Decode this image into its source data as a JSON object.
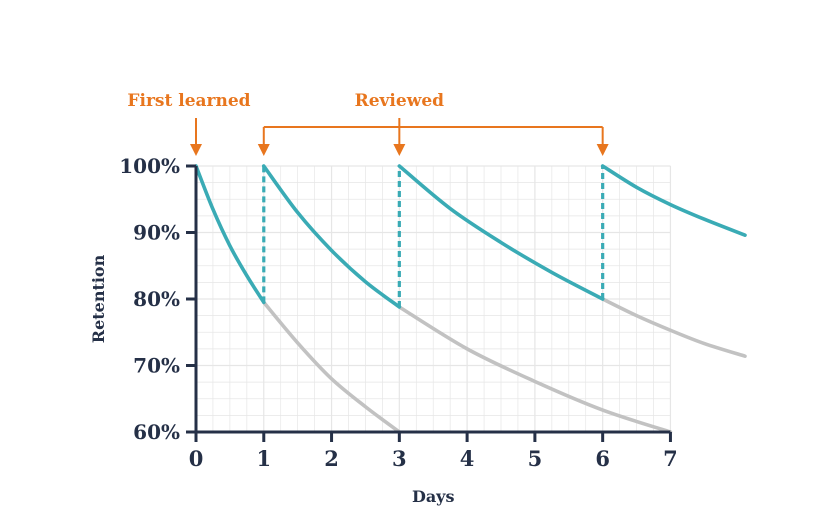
{
  "chart_data": {
    "type": "line",
    "title": "",
    "xlabel": "Days",
    "ylabel": "Retention",
    "xlim": [
      0,
      8.1
    ],
    "ylim": [
      60,
      100
    ],
    "x_ticks": [
      0,
      1,
      2,
      3,
      4,
      5,
      6,
      7
    ],
    "y_ticks": [
      {
        "value": 60,
        "label": "60%"
      },
      {
        "value": 70,
        "label": "70%"
      },
      {
        "value": 80,
        "label": "80%"
      },
      {
        "value": 90,
        "label": "90%"
      },
      {
        "value": 100,
        "label": "100%"
      }
    ],
    "grid": true,
    "colors": {
      "with_review": "#3aabb5",
      "without_review": "#c2c2c2",
      "annotation": "#e8761e",
      "axis": "#253047",
      "grid": "#e6e6e6"
    },
    "series": [
      {
        "role": "with_review",
        "segments": [
          {
            "x": [
              0,
              0.25,
              0.5,
              0.75,
              1
            ],
            "y": [
              100,
              93.5,
              88,
              83.5,
              79.5
            ]
          },
          {
            "x": [
              1,
              1.5,
              2,
              2.5,
              3
            ],
            "y": [
              100,
              93,
              87.3,
              82.6,
              78.8
            ]
          },
          {
            "x": [
              3,
              3.75,
              4.5,
              5.25,
              6
            ],
            "y": [
              100,
              93.6,
              88.5,
              84,
              80
            ]
          },
          {
            "x": [
              6,
              6.5,
              7,
              7.5,
              8.1
            ],
            "y": [
              100,
              96.8,
              94.2,
              92,
              89.6
            ]
          }
        ]
      },
      {
        "role": "without_review",
        "segments": [
          {
            "x": [
              1,
              1.5,
              2,
              2.5,
              3
            ],
            "y": [
              79.5,
              73.4,
              68,
              63.8,
              60
            ]
          },
          {
            "x": [
              3,
              4,
              5,
              6,
              7
            ],
            "y": [
              78.8,
              72.5,
              67.6,
              63.3,
              60
            ]
          },
          {
            "x": [
              6,
              6.5,
              7,
              7.5,
              8.1
            ],
            "y": [
              80,
              77.5,
              75.3,
              73.3,
              71.4
            ]
          }
        ]
      }
    ],
    "review_jumps": [
      {
        "x": 1,
        "from": 79.5,
        "to": 100
      },
      {
        "x": 3,
        "from": 78.8,
        "to": 100
      },
      {
        "x": 6,
        "from": 80,
        "to": 100
      }
    ],
    "annotations": [
      {
        "label": "First learned",
        "x": [
          0
        ]
      },
      {
        "label": "Reviewed",
        "x": [
          1,
          3,
          6
        ]
      }
    ]
  }
}
